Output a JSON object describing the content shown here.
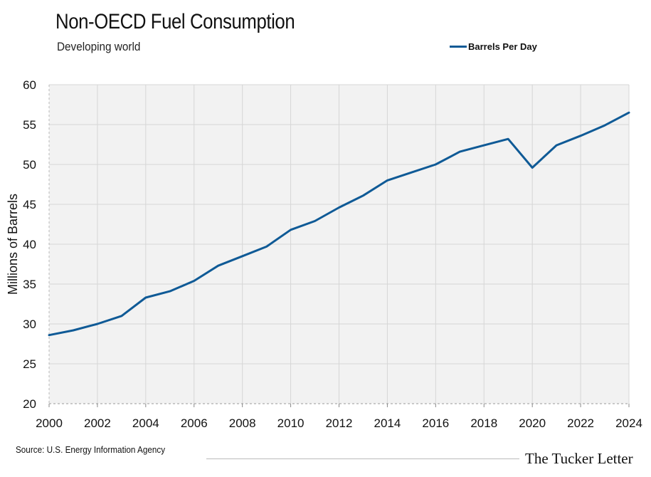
{
  "title": "Non-OECD Fuel Consumption",
  "subtitle": "Developing world",
  "source": "Source: U.S. Energy Information Agency",
  "brand": "The Tucker Letter",
  "chart_data": {
    "type": "line",
    "title": "Non-OECD Fuel Consumption",
    "subtitle": "Developing world",
    "xlabel": "",
    "ylabel": "Millions of Barrels",
    "xlim": [
      2000,
      2024
    ],
    "ylim": [
      20,
      60
    ],
    "x_ticks": [
      "2000",
      "2002",
      "2004",
      "2006",
      "2008",
      "2010",
      "2012",
      "2014",
      "2016",
      "2018",
      "2020",
      "2022",
      "2024"
    ],
    "y_ticks": [
      "20",
      "25",
      "30",
      "35",
      "40",
      "45",
      "50",
      "55",
      "60"
    ],
    "grid": true,
    "legend_position": "top-right",
    "background_color": "#f2f2f2",
    "series": [
      {
        "name": "Barrels Per Day",
        "color": "#0f5a96",
        "x": [
          2000,
          2001,
          2002,
          2003,
          2004,
          2005,
          2006,
          2007,
          2008,
          2009,
          2010,
          2011,
          2012,
          2013,
          2014,
          2015,
          2016,
          2017,
          2018,
          2019,
          2020,
          2021,
          2022,
          2023,
          2024
        ],
        "values": [
          28.6,
          29.2,
          30.0,
          31.0,
          33.3,
          34.1,
          35.4,
          37.3,
          38.5,
          39.7,
          41.8,
          42.9,
          44.6,
          46.1,
          48.0,
          49.0,
          50.0,
          51.6,
          52.4,
          53.2,
          49.6,
          52.4,
          53.6,
          54.9,
          56.5
        ]
      }
    ]
  }
}
